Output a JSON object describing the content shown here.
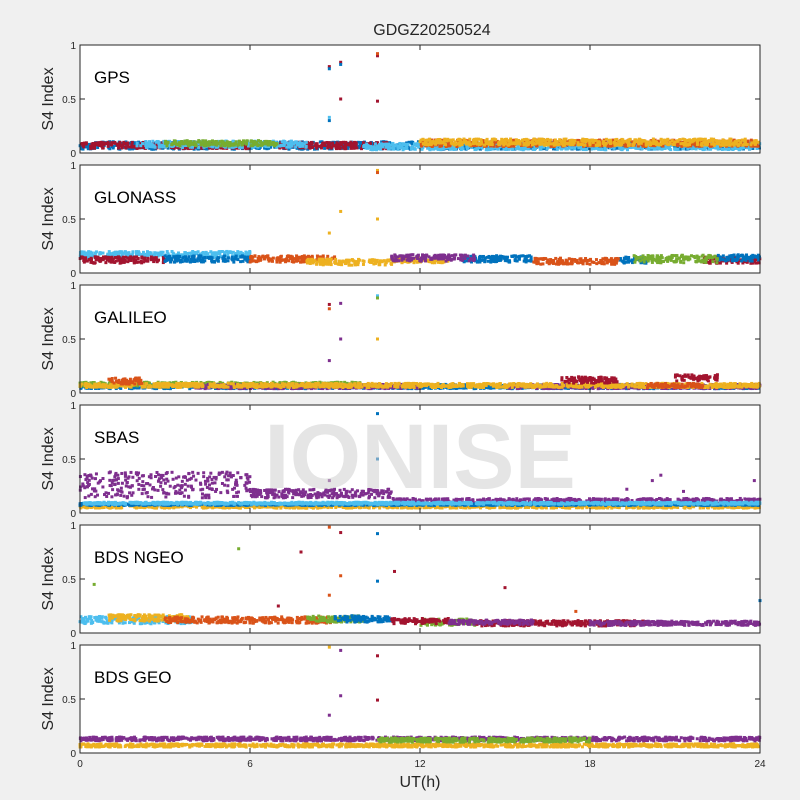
{
  "figure": {
    "title": "GDGZ20250524",
    "xlabel": "UT(h)",
    "ylabel": "S4 Index",
    "watermark": "IONISE"
  },
  "colors": {
    "blue": "#0072bd",
    "orange": "#d95319",
    "yellow": "#edb120",
    "purple": "#7e2f8e",
    "green": "#77ac30",
    "lightblue": "#4dbeee",
    "red": "#a2142f"
  },
  "chart_data": [
    {
      "type": "scatter",
      "label": "GPS",
      "xlim": [
        0,
        24
      ],
      "ylim": [
        0,
        1
      ],
      "xticks": [
        0,
        6,
        12,
        18,
        24
      ],
      "yticks": [
        0,
        0.5,
        1
      ],
      "yticklabels": [
        "0",
        "0.5",
        "1"
      ],
      "series": [
        {
          "color": "blue",
          "segments": [
            [
              0,
              24,
              0.07,
              0.035
            ]
          ]
        },
        {
          "color": "red",
          "segments": [
            [
              0,
              6,
              0.07,
              0.03
            ],
            [
              7,
              11,
              0.07,
              0.03
            ]
          ]
        },
        {
          "color": "lightblue",
          "segments": [
            [
              2,
              8,
              0.08,
              0.03
            ],
            [
              10,
              24,
              0.06,
              0.03
            ]
          ]
        },
        {
          "color": "orange",
          "segments": [
            [
              12,
              24,
              0.09,
              0.03
            ]
          ]
        },
        {
          "color": "yellow",
          "segments": [
            [
              12,
              24,
              0.1,
              0.03
            ]
          ]
        },
        {
          "color": "green",
          "segments": [
            [
              3,
              7,
              0.09,
              0.025
            ]
          ]
        }
      ],
      "outliers": [
        {
          "x": 8.8,
          "y": 0.8,
          "color": "red"
        },
        {
          "x": 8.8,
          "y": 0.78,
          "color": "blue"
        },
        {
          "x": 9.2,
          "y": 0.84,
          "color": "red"
        },
        {
          "x": 9.2,
          "y": 0.82,
          "color": "blue"
        },
        {
          "x": 9.2,
          "y": 0.5,
          "color": "red"
        },
        {
          "x": 8.8,
          "y": 0.3,
          "color": "blue"
        },
        {
          "x": 8.8,
          "y": 0.33,
          "color": "lightblue"
        },
        {
          "x": 10.5,
          "y": 0.9,
          "color": "red"
        },
        {
          "x": 10.5,
          "y": 0.92,
          "color": "orange"
        },
        {
          "x": 10.5,
          "y": 0.48,
          "color": "red"
        }
      ]
    },
    {
      "type": "scatter",
      "label": "GLONASS",
      "xlim": [
        0,
        24
      ],
      "ylim": [
        0,
        1
      ],
      "xticks": [
        0,
        6,
        12,
        18,
        24
      ],
      "yticks": [
        0,
        0.5,
        1
      ],
      "yticklabels": [
        "0",
        "0.5",
        "1"
      ],
      "series": [
        {
          "color": "lightblue",
          "segments": [
            [
              0,
              6,
              0.17,
              0.03
            ]
          ]
        },
        {
          "color": "red",
          "segments": [
            [
              0,
              3,
              0.12,
              0.03
            ],
            [
              22,
              24,
              0.12,
              0.03
            ]
          ]
        },
        {
          "color": "blue",
          "segments": [
            [
              3,
              6,
              0.13,
              0.03
            ],
            [
              13.5,
              16,
              0.13,
              0.03
            ],
            [
              19,
              20,
              0.12,
              0.03
            ],
            [
              22.5,
              24,
              0.14,
              0.03
            ]
          ]
        },
        {
          "color": "orange",
          "segments": [
            [
              6,
              9,
              0.13,
              0.03
            ],
            [
              16,
              19,
              0.11,
              0.03
            ]
          ]
        },
        {
          "color": "yellow",
          "segments": [
            [
              8,
              11,
              0.1,
              0.03
            ],
            [
              11,
              13,
              0.12,
              0.025
            ]
          ]
        },
        {
          "color": "purple",
          "segments": [
            [
              11,
              14,
              0.14,
              0.03
            ]
          ]
        },
        {
          "color": "green",
          "segments": [
            [
              19.5,
              22.5,
              0.13,
              0.035
            ]
          ]
        }
      ],
      "outliers": [
        {
          "x": 10.5,
          "y": 0.95,
          "color": "yellow"
        },
        {
          "x": 10.5,
          "y": 0.93,
          "color": "orange"
        },
        {
          "x": 9.2,
          "y": 0.57,
          "color": "yellow"
        },
        {
          "x": 10.5,
          "y": 0.5,
          "color": "yellow"
        },
        {
          "x": 8.8,
          "y": 0.37,
          "color": "yellow"
        }
      ]
    },
    {
      "type": "scatter",
      "label": "GALILEO",
      "xlim": [
        0,
        24
      ],
      "ylim": [
        0,
        1
      ],
      "xticks": [
        0,
        6,
        12,
        18,
        24
      ],
      "yticks": [
        0,
        0.5,
        1
      ],
      "yticklabels": [
        "0",
        "0.5",
        "1"
      ],
      "series": [
        {
          "color": "blue",
          "segments": [
            [
              0,
              24,
              0.06,
              0.02
            ]
          ]
        },
        {
          "color": "green",
          "segments": [
            [
              0,
              10,
              0.08,
              0.02
            ]
          ]
        },
        {
          "color": "purple",
          "segments": [
            [
              4,
              12,
              0.06,
              0.02
            ],
            [
              15,
              24,
              0.06,
              0.02
            ]
          ]
        },
        {
          "color": "yellow",
          "segments": [
            [
              0,
              24,
              0.07,
              0.02
            ]
          ]
        },
        {
          "color": "orange",
          "segments": [
            [
              1,
              2.2,
              0.11,
              0.03
            ],
            [
              20,
              22,
              0.07,
              0.02
            ]
          ]
        },
        {
          "color": "red",
          "segments": [
            [
              17,
              19,
              0.12,
              0.03
            ],
            [
              21,
              22.5,
              0.14,
              0.03
            ]
          ]
        }
      ],
      "outliers": [
        {
          "x": 8.8,
          "y": 0.82,
          "color": "red"
        },
        {
          "x": 8.8,
          "y": 0.78,
          "color": "orange"
        },
        {
          "x": 9.2,
          "y": 0.83,
          "color": "purple"
        },
        {
          "x": 10.5,
          "y": 0.9,
          "color": "lightblue"
        },
        {
          "x": 10.5,
          "y": 0.88,
          "color": "green"
        },
        {
          "x": 9.2,
          "y": 0.5,
          "color": "purple"
        },
        {
          "x": 10.5,
          "y": 0.5,
          "color": "yellow"
        },
        {
          "x": 8.8,
          "y": 0.3,
          "color": "purple"
        }
      ]
    },
    {
      "type": "scatter",
      "label": "SBAS",
      "xlim": [
        0,
        24
      ],
      "ylim": [
        0,
        1
      ],
      "xticks": [
        0,
        6,
        12,
        18,
        24
      ],
      "yticks": [
        0,
        0.5,
        1
      ],
      "yticklabels": [
        "0",
        "0.5",
        "1"
      ],
      "series": [
        {
          "color": "purple",
          "segments": [
            [
              0,
              6,
              0.26,
              0.12
            ],
            [
              6,
              11,
              0.18,
              0.04
            ],
            [
              11,
              24,
              0.11,
              0.025
            ]
          ]
        },
        {
          "color": "yellow",
          "segments": [
            [
              0,
              24,
              0.06,
              0.015
            ]
          ]
        },
        {
          "color": "blue",
          "segments": [
            [
              0,
              24,
              0.08,
              0.01
            ]
          ]
        },
        {
          "color": "lightblue",
          "segments": [
            [
              0,
              24,
              0.09,
              0.01
            ]
          ]
        }
      ],
      "outliers": [
        {
          "x": 19.3,
          "y": 0.22,
          "color": "purple"
        },
        {
          "x": 20.2,
          "y": 0.3,
          "color": "purple"
        },
        {
          "x": 20.5,
          "y": 0.35,
          "color": "purple"
        },
        {
          "x": 21.3,
          "y": 0.2,
          "color": "purple"
        },
        {
          "x": 23.8,
          "y": 0.3,
          "color": "purple"
        },
        {
          "x": 10.5,
          "y": 0.5,
          "color": "blue"
        },
        {
          "x": 10.5,
          "y": 0.92,
          "color": "blue"
        },
        {
          "x": 8.8,
          "y": 0.3,
          "color": "purple"
        }
      ]
    },
    {
      "type": "scatter",
      "label": "BDS NGEO",
      "xlim": [
        0,
        24
      ],
      "ylim": [
        0,
        1
      ],
      "xticks": [
        0,
        6,
        12,
        18,
        24
      ],
      "yticks": [
        0,
        0.5,
        1
      ],
      "yticklabels": [
        "0",
        "0.5",
        "1"
      ],
      "series": [
        {
          "color": "lightblue",
          "segments": [
            [
              0,
              4,
              0.12,
              0.035
            ]
          ]
        },
        {
          "color": "yellow",
          "segments": [
            [
              1,
              4,
              0.14,
              0.03
            ]
          ]
        },
        {
          "color": "orange",
          "segments": [
            [
              3,
              9,
              0.12,
              0.03
            ]
          ]
        },
        {
          "color": "green",
          "segments": [
            [
              8,
              10,
              0.13,
              0.03
            ],
            [
              12,
              14,
              0.1,
              0.03
            ]
          ]
        },
        {
          "color": "blue",
          "segments": [
            [
              9,
              11,
              0.13,
              0.03
            ]
          ]
        },
        {
          "color": "red",
          "segments": [
            [
              11,
              13,
              0.11,
              0.025
            ],
            [
              14,
              20,
              0.09,
              0.025
            ]
          ]
        },
        {
          "color": "purple",
          "segments": [
            [
              13,
              16,
              0.1,
              0.02
            ],
            [
              18,
              24,
              0.09,
              0.02
            ]
          ]
        }
      ],
      "outliers": [
        {
          "x": 0.5,
          "y": 0.45,
          "color": "green"
        },
        {
          "x": 5.6,
          "y": 0.78,
          "color": "green"
        },
        {
          "x": 7.8,
          "y": 0.75,
          "color": "red"
        },
        {
          "x": 7,
          "y": 0.25,
          "color": "red"
        },
        {
          "x": 8.8,
          "y": 0.98,
          "color": "orange"
        },
        {
          "x": 9.2,
          "y": 0.93,
          "color": "red"
        },
        {
          "x": 10.5,
          "y": 0.92,
          "color": "blue"
        },
        {
          "x": 9.2,
          "y": 0.53,
          "color": "orange"
        },
        {
          "x": 10.5,
          "y": 0.48,
          "color": "blue"
        },
        {
          "x": 11.1,
          "y": 0.57,
          "color": "red"
        },
        {
          "x": 15,
          "y": 0.42,
          "color": "red"
        },
        {
          "x": 8.8,
          "y": 0.35,
          "color": "orange"
        },
        {
          "x": 17.5,
          "y": 0.2,
          "color": "orange"
        },
        {
          "x": 24,
          "y": 0.3,
          "color": "blue"
        }
      ]
    },
    {
      "type": "scatter",
      "label": "BDS GEO",
      "xlim": [
        0,
        24
      ],
      "ylim": [
        0,
        1
      ],
      "xticks": [
        0,
        6,
        12,
        18,
        24
      ],
      "yticks": [
        0,
        0.5,
        1
      ],
      "yticklabels": [
        "0",
        "0.5",
        "1"
      ],
      "series": [
        {
          "color": "purple",
          "segments": [
            [
              0,
              24,
              0.13,
              0.018
            ]
          ]
        },
        {
          "color": "yellow",
          "segments": [
            [
              0,
              24,
              0.07,
              0.015
            ]
          ]
        },
        {
          "color": "green",
          "segments": [
            [
              10.5,
              18,
              0.12,
              0.02
            ]
          ]
        }
      ],
      "outliers": [
        {
          "x": 8.8,
          "y": 0.98,
          "color": "yellow"
        },
        {
          "x": 9.2,
          "y": 0.95,
          "color": "purple"
        },
        {
          "x": 10.5,
          "y": 0.9,
          "color": "red"
        },
        {
          "x": 9.2,
          "y": 0.53,
          "color": "purple"
        },
        {
          "x": 10.5,
          "y": 0.49,
          "color": "red"
        },
        {
          "x": 8.8,
          "y": 0.35,
          "color": "purple"
        }
      ]
    }
  ]
}
